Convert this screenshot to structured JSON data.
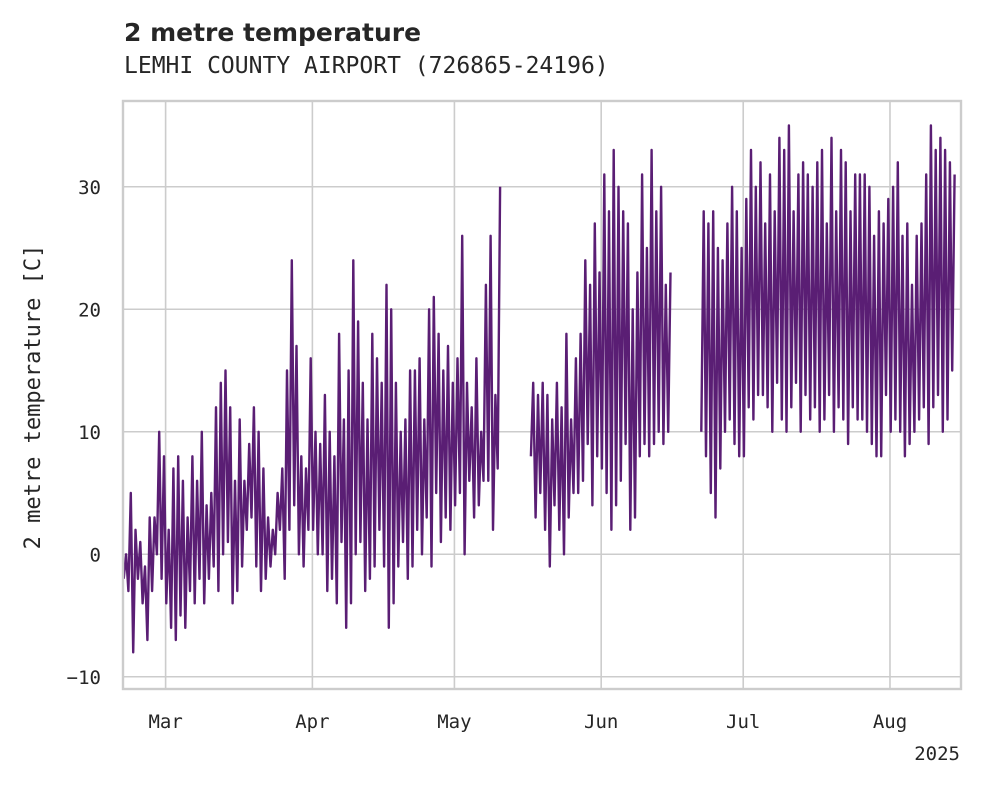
{
  "chart_data": {
    "type": "line",
    "title": "2 metre temperature",
    "subtitle": "LEMHI COUNTY AIRPORT (726865-24196)",
    "xlabel": "",
    "ylabel": "2 metre temperature [C]",
    "x_range": [
      "2025-02-20",
      "2025-08-16"
    ],
    "ylim": [
      -11,
      37
    ],
    "y_ticks": [
      -10,
      0,
      10,
      20,
      30
    ],
    "x_ticks": [
      {
        "date": "2025-03-01",
        "label": "Mar"
      },
      {
        "date": "2025-04-01",
        "label": "Apr"
      },
      {
        "date": "2025-05-01",
        "label": "May"
      },
      {
        "date": "2025-06-01",
        "label": "Jun"
      },
      {
        "date": "2025-07-01",
        "label": "Jul"
      },
      {
        "date": "2025-08-01",
        "label": "Aug"
      }
    ],
    "year_label": "2025",
    "grid": true,
    "line_color": "#5a1e74",
    "daily_range": {
      "dates": [
        "2025-02-20",
        "2025-02-21",
        "2025-02-22",
        "2025-02-23",
        "2025-02-24",
        "2025-02-25",
        "2025-02-26",
        "2025-02-27",
        "2025-02-28",
        "2025-03-01",
        "2025-03-02",
        "2025-03-03",
        "2025-03-04",
        "2025-03-05",
        "2025-03-06",
        "2025-03-07",
        "2025-03-08",
        "2025-03-09",
        "2025-03-10",
        "2025-03-11",
        "2025-03-12",
        "2025-03-13",
        "2025-03-14",
        "2025-03-15",
        "2025-03-16",
        "2025-03-17",
        "2025-03-18",
        "2025-03-19",
        "2025-03-20",
        "2025-03-21",
        "2025-03-22",
        "2025-03-23",
        "2025-03-24",
        "2025-03-25",
        "2025-03-26",
        "2025-03-27",
        "2025-03-28",
        "2025-03-29",
        "2025-03-30",
        "2025-03-31",
        "2025-04-01",
        "2025-04-02",
        "2025-04-03",
        "2025-04-04",
        "2025-04-05",
        "2025-04-06",
        "2025-04-07",
        "2025-04-08",
        "2025-04-09",
        "2025-04-10",
        "2025-04-11",
        "2025-04-12",
        "2025-04-13",
        "2025-04-14",
        "2025-04-15",
        "2025-04-16",
        "2025-04-17",
        "2025-04-18",
        "2025-04-19",
        "2025-04-20",
        "2025-04-21",
        "2025-04-22",
        "2025-04-23",
        "2025-04-24",
        "2025-04-25",
        "2025-04-26",
        "2025-04-27",
        "2025-04-28",
        "2025-04-29",
        "2025-04-30",
        "2025-05-01",
        "2025-05-02",
        "2025-05-03",
        "2025-05-04",
        "2025-05-05",
        "2025-05-06",
        "2025-05-07",
        "2025-05-08",
        "2025-05-09",
        "2025-05-10",
        "2025-05-11",
        "2025-05-12",
        "2025-05-13",
        "2025-05-14",
        "2025-05-15",
        "2025-05-16",
        "2025-05-17",
        "2025-05-18",
        "2025-05-19",
        "2025-05-20",
        "2025-05-21",
        "2025-05-22",
        "2025-05-23",
        "2025-05-24",
        "2025-05-25",
        "2025-05-26",
        "2025-05-27",
        "2025-05-28",
        "2025-05-29",
        "2025-05-30",
        "2025-05-31",
        "2025-06-01",
        "2025-06-02",
        "2025-06-03",
        "2025-06-04",
        "2025-06-05",
        "2025-06-06",
        "2025-06-07",
        "2025-06-08",
        "2025-06-09",
        "2025-06-10",
        "2025-06-11",
        "2025-06-12",
        "2025-06-13",
        "2025-06-14",
        "2025-06-15",
        "2025-06-16",
        "2025-06-17",
        "2025-06-18",
        "2025-06-19",
        "2025-06-20",
        "2025-06-21",
        "2025-06-22",
        "2025-06-23",
        "2025-06-24",
        "2025-06-25",
        "2025-06-26",
        "2025-06-27",
        "2025-06-28",
        "2025-06-29",
        "2025-06-30",
        "2025-07-01",
        "2025-07-02",
        "2025-07-03",
        "2025-07-04",
        "2025-07-05",
        "2025-07-06",
        "2025-07-07",
        "2025-07-08",
        "2025-07-09",
        "2025-07-10",
        "2025-07-11",
        "2025-07-12",
        "2025-07-13",
        "2025-07-14",
        "2025-07-15",
        "2025-07-16",
        "2025-07-17",
        "2025-07-18",
        "2025-07-19",
        "2025-07-20",
        "2025-07-21",
        "2025-07-22",
        "2025-07-23",
        "2025-07-24",
        "2025-07-25",
        "2025-07-26",
        "2025-07-27",
        "2025-07-28",
        "2025-07-29",
        "2025-07-30",
        "2025-07-31",
        "2025-08-01",
        "2025-08-02",
        "2025-08-03",
        "2025-08-04",
        "2025-08-05",
        "2025-08-06",
        "2025-08-07",
        "2025-08-08",
        "2025-08-09",
        "2025-08-10",
        "2025-08-11",
        "2025-08-12",
        "2025-08-13",
        "2025-08-14",
        "2025-08-15",
        "2025-08-16"
      ],
      "max": [
        0,
        5,
        2,
        1,
        -1,
        3,
        3,
        10,
        8,
        2,
        7,
        8,
        6,
        3,
        8,
        6,
        10,
        4,
        5,
        12,
        14,
        15,
        12,
        6,
        11,
        6,
        9,
        12,
        10,
        7,
        3,
        2,
        5,
        7,
        15,
        24,
        17,
        8,
        7,
        16,
        10,
        9,
        13,
        10,
        8,
        18,
        11,
        15,
        24,
        19,
        14,
        11,
        18,
        16,
        14,
        22,
        20,
        14,
        10,
        11,
        15,
        15,
        16,
        11,
        20,
        21,
        18,
        15,
        17,
        14,
        16,
        26,
        14,
        12,
        16,
        10,
        22,
        26,
        13,
        30,
        null,
        null,
        null,
        null,
        null,
        null,
        14,
        13,
        14,
        13,
        11,
        14,
        12,
        18,
        11,
        16,
        18,
        24,
        22,
        27,
        23,
        31,
        28,
        33,
        30,
        28,
        27,
        20,
        23,
        31,
        25,
        33,
        28,
        30,
        22,
        23,
        null,
        null,
        null,
        null,
        null,
        null,
        28,
        27,
        28,
        25,
        24,
        27,
        30,
        28,
        25,
        29,
        33,
        30,
        32,
        27,
        31,
        28,
        34,
        33,
        35,
        28,
        31,
        32,
        31,
        30,
        32,
        33,
        27,
        34,
        28,
        33,
        32,
        28,
        31,
        31,
        31,
        30,
        26,
        28,
        27,
        29,
        30,
        32,
        26,
        27,
        22,
        26,
        27,
        31,
        35,
        33,
        34,
        33,
        32,
        31,
        null
      ],
      "min": [
        -2,
        -3,
        -8,
        -2,
        -4,
        -7,
        -3,
        0,
        -2,
        -4,
        -6,
        -7,
        -5,
        -6,
        -3,
        -4,
        -2,
        -4,
        -2,
        -1,
        -3,
        0,
        1,
        -4,
        -3,
        -1,
        2,
        3,
        -1,
        -3,
        -2,
        -1,
        0,
        2,
        -2,
        2,
        4,
        0,
        -1,
        2,
        2,
        0,
        0,
        -3,
        -2,
        -4,
        1,
        -6,
        -4,
        0,
        1,
        -3,
        -2,
        -1,
        2,
        -1,
        -6,
        -4,
        -1,
        1,
        -2,
        -1,
        2,
        0,
        3,
        -1,
        5,
        1,
        3,
        2,
        4,
        5,
        0,
        6,
        3,
        4,
        6,
        6,
        2,
        7,
        null,
        null,
        null,
        null,
        null,
        null,
        8,
        3,
        5,
        2,
        -1,
        4,
        2,
        0,
        3,
        5,
        5,
        6,
        9,
        4,
        8,
        7,
        5,
        2,
        4,
        6,
        9,
        2,
        3,
        8,
        9,
        8,
        9,
        10,
        9,
        10,
        null,
        null,
        null,
        null,
        null,
        null,
        10,
        8,
        5,
        3,
        7,
        10,
        11,
        9,
        8,
        8,
        12,
        11,
        13,
        13,
        12,
        10,
        14,
        11,
        10,
        12,
        14,
        10,
        13,
        11,
        12,
        10,
        11,
        13,
        10,
        12,
        11,
        9,
        12,
        11,
        11,
        10,
        9,
        8,
        8,
        13,
        10,
        11,
        10,
        8,
        9,
        10,
        11,
        12,
        9,
        12,
        13,
        10,
        11,
        15,
        null
      ]
    }
  }
}
